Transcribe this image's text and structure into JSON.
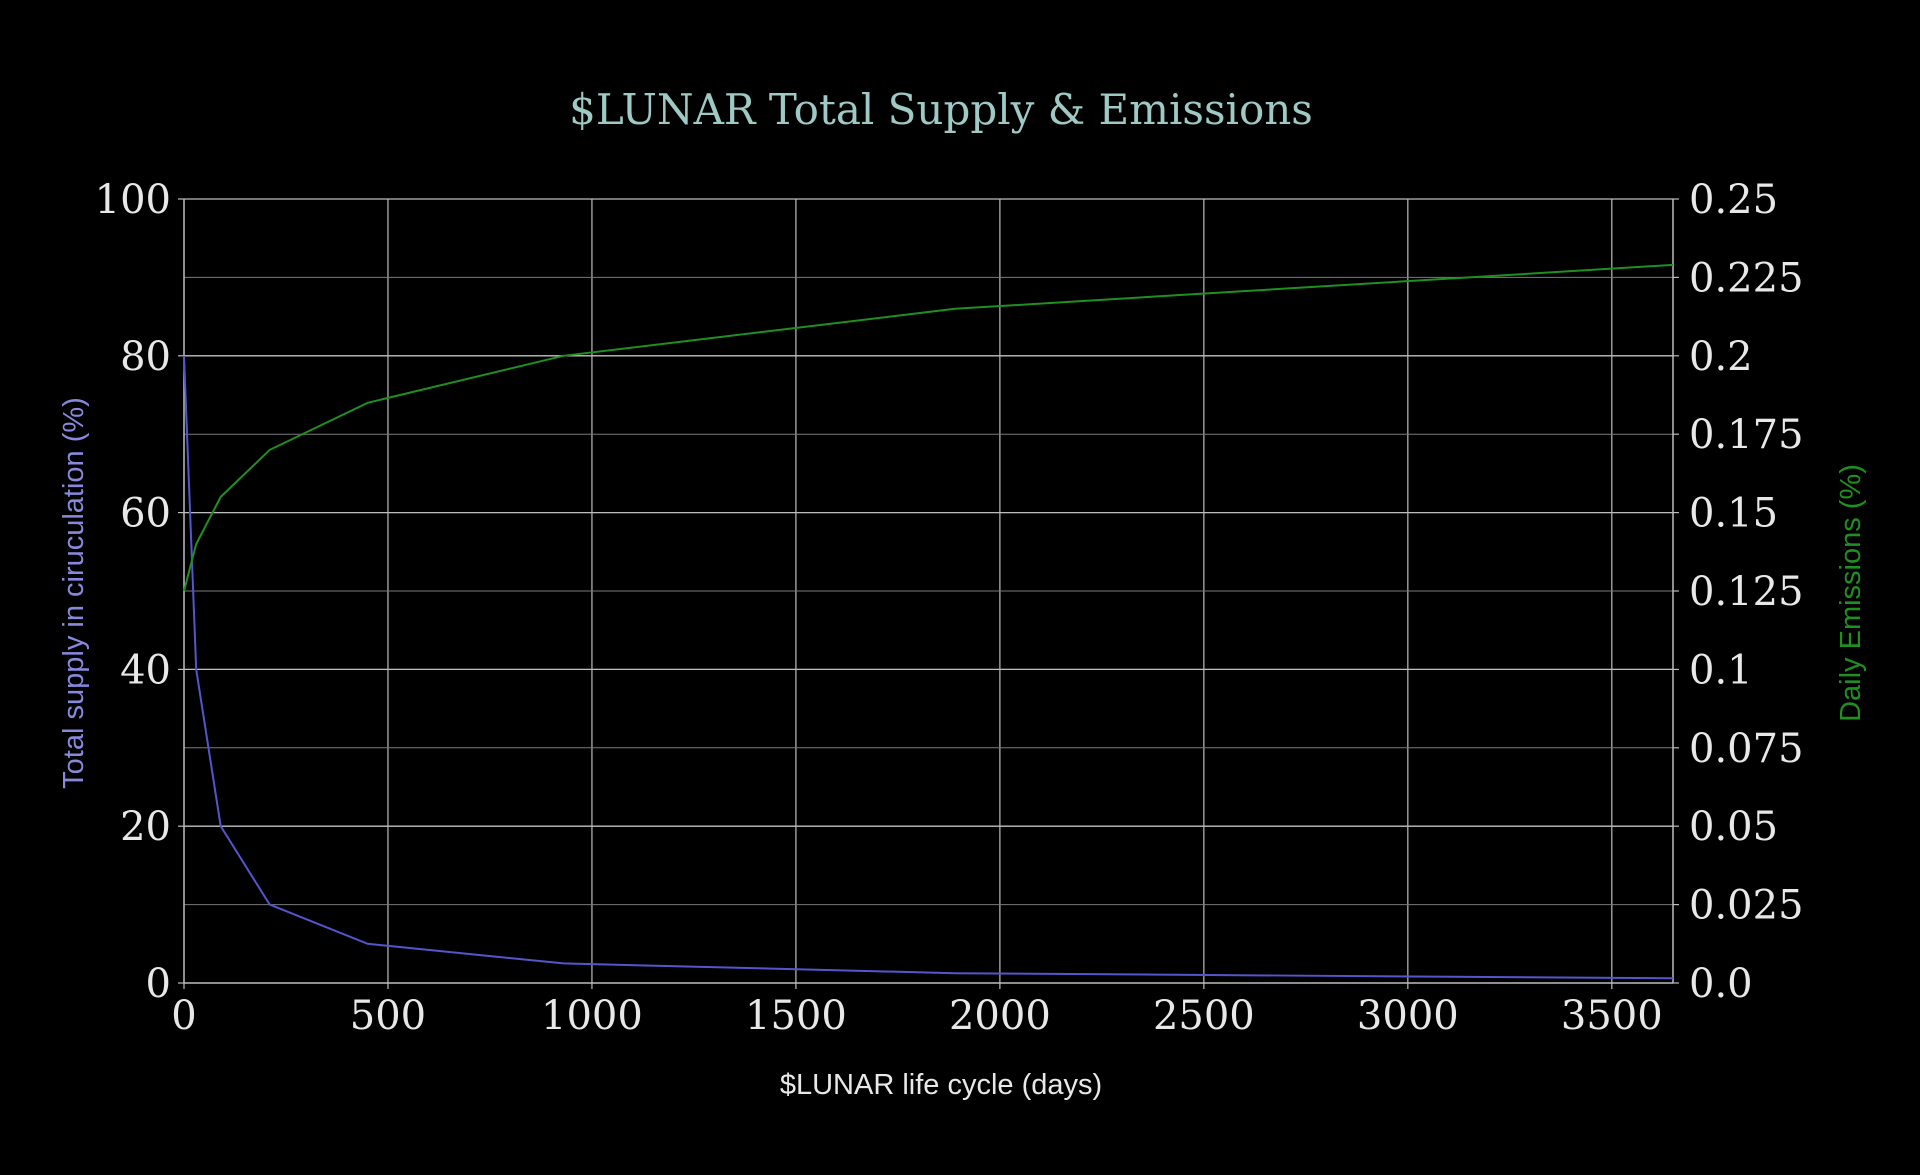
{
  "chart_data": {
    "type": "line",
    "title": "$LUNAR Total Supply & Emissions",
    "xlabel": "$LUNAR life cycle (days)",
    "ylabel_left": "Total supply in ciruculation (%)",
    "ylabel_right": "Daily Emissions (%)",
    "xlim": [
      0,
      3650
    ],
    "ylim_left": [
      0,
      100
    ],
    "ylim_right": [
      0,
      0.25
    ],
    "x_ticks": [
      "0",
      "500",
      "1000",
      "1500",
      "2000",
      "2500",
      "3000",
      "3500"
    ],
    "y_left_ticks": [
      "0",
      "20",
      "40",
      "60",
      "80",
      "100"
    ],
    "y_right_ticks": [
      "0.0",
      "0.025",
      "0.05",
      "0.075",
      "0.1",
      "0.125",
      "0.15",
      "0.175",
      "0.2",
      "0.225",
      "0.25"
    ],
    "grid": true,
    "colors": {
      "background": "#000000",
      "title": "#9ec9c4",
      "supply": "#5555cc",
      "emissions": "#1f8f1f",
      "ylabel_left": "#8888dd",
      "ylabel_right": "#1f8f1f",
      "axis_text": "#e8e8e8",
      "grid": "#bdbdbd"
    },
    "series": [
      {
        "axis": "left",
        "x": [
          0,
          30,
          90,
          210,
          450,
          930,
          1890,
          3650
        ],
        "y": [
          80,
          40,
          20,
          10,
          5,
          2.5,
          1.25,
          0.6
        ]
      },
      {
        "axis": "right",
        "x": [
          0,
          30,
          90,
          210,
          450,
          930,
          1890,
          3650
        ],
        "y": [
          0.125,
          0.14,
          0.155,
          0.17,
          0.185,
          0.2,
          0.215,
          0.229
        ]
      }
    ]
  }
}
